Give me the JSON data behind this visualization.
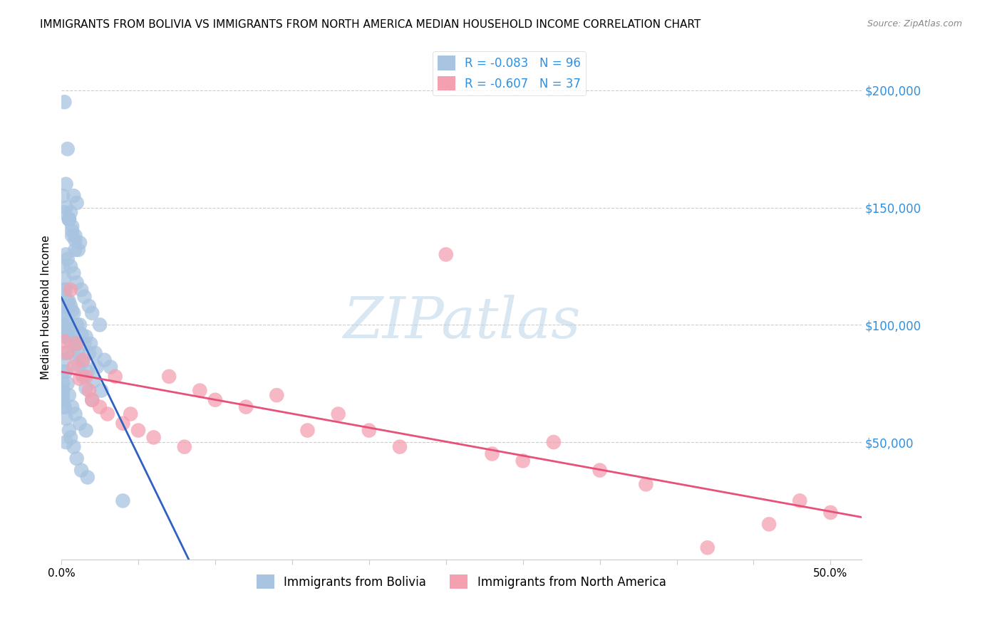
{
  "title": "IMMIGRANTS FROM BOLIVIA VS IMMIGRANTS FROM NORTH AMERICA MEDIAN HOUSEHOLD INCOME CORRELATION CHART",
  "source": "Source: ZipAtlas.com",
  "ylabel": "Median Household Income",
  "watermark": "ZIPatlas",
  "legend1_r": "-0.083",
  "legend1_n": "96",
  "legend2_r": "-0.607",
  "legend2_n": "37",
  "legend1_label": "Immigrants from Bolivia",
  "legend2_label": "Immigrants from North America",
  "blue_color": "#a8c4e0",
  "pink_color": "#f4a0b0",
  "blue_line_color": "#3060c0",
  "pink_line_color": "#e8507a",
  "dashed_line_color": "#a0b8d0",
  "ytick_color": "#3090e0",
  "yticks": [
    50000,
    100000,
    150000,
    200000
  ],
  "ytick_labels": [
    "$50,000",
    "$100,000",
    "$150,000",
    "$200,000"
  ],
  "ylim": [
    0,
    215000
  ],
  "xlim": [
    0,
    0.52
  ],
  "bolivia_x": [
    0.002,
    0.004,
    0.003,
    0.008,
    0.01,
    0.006,
    0.005,
    0.007,
    0.009,
    0.012,
    0.003,
    0.004,
    0.006,
    0.008,
    0.01,
    0.002,
    0.005,
    0.007,
    0.009,
    0.011,
    0.001,
    0.003,
    0.005,
    0.007,
    0.009,
    0.013,
    0.015,
    0.018,
    0.02,
    0.025,
    0.002,
    0.004,
    0.006,
    0.008,
    0.012,
    0.016,
    0.019,
    0.022,
    0.028,
    0.032,
    0.001,
    0.002,
    0.004,
    0.006,
    0.009,
    0.011,
    0.014,
    0.017,
    0.021,
    0.026,
    0.001,
    0.002,
    0.003,
    0.005,
    0.007,
    0.01,
    0.013,
    0.015,
    0.018,
    0.023,
    0.001,
    0.002,
    0.003,
    0.004,
    0.006,
    0.008,
    0.011,
    0.014,
    0.016,
    0.02,
    0.001,
    0.001,
    0.002,
    0.003,
    0.004,
    0.005,
    0.007,
    0.009,
    0.012,
    0.016,
    0.001,
    0.001,
    0.002,
    0.003,
    0.005,
    0.006,
    0.008,
    0.01,
    0.013,
    0.017,
    0.001,
    0.001,
    0.001,
    0.002,
    0.003,
    0.04
  ],
  "bolivia_y": [
    195000,
    175000,
    160000,
    155000,
    152000,
    148000,
    145000,
    142000,
    138000,
    135000,
    130000,
    128000,
    125000,
    122000,
    118000,
    148000,
    145000,
    140000,
    136000,
    132000,
    155000,
    150000,
    145000,
    138000,
    132000,
    115000,
    112000,
    108000,
    105000,
    100000,
    115000,
    110000,
    108000,
    105000,
    100000,
    95000,
    92000,
    88000,
    85000,
    82000,
    105000,
    100000,
    98000,
    95000,
    92000,
    88000,
    84000,
    80000,
    76000,
    72000,
    125000,
    120000,
    115000,
    110000,
    106000,
    100000,
    96000,
    92000,
    88000,
    82000,
    108000,
    104000,
    100000,
    96000,
    93000,
    88000,
    83000,
    78000,
    73000,
    68000,
    95000,
    88000,
    85000,
    80000,
    75000,
    70000,
    65000,
    62000,
    58000,
    55000,
    72000,
    68000,
    65000,
    60000,
    55000,
    52000,
    48000,
    43000,
    38000,
    35000,
    80000,
    75000,
    70000,
    65000,
    50000,
    25000
  ],
  "north_america_x": [
    0.002,
    0.004,
    0.006,
    0.008,
    0.01,
    0.012,
    0.014,
    0.016,
    0.018,
    0.02,
    0.025,
    0.03,
    0.035,
    0.04,
    0.045,
    0.05,
    0.06,
    0.07,
    0.08,
    0.09,
    0.1,
    0.12,
    0.14,
    0.16,
    0.18,
    0.2,
    0.22,
    0.25,
    0.28,
    0.3,
    0.32,
    0.35,
    0.38,
    0.42,
    0.46,
    0.48,
    0.5
  ],
  "north_america_y": [
    93000,
    88000,
    115000,
    82000,
    92000,
    77000,
    85000,
    78000,
    72000,
    68000,
    65000,
    62000,
    78000,
    58000,
    62000,
    55000,
    52000,
    78000,
    48000,
    72000,
    68000,
    65000,
    70000,
    55000,
    62000,
    55000,
    48000,
    130000,
    45000,
    42000,
    50000,
    38000,
    32000,
    5000,
    15000,
    25000,
    20000
  ]
}
